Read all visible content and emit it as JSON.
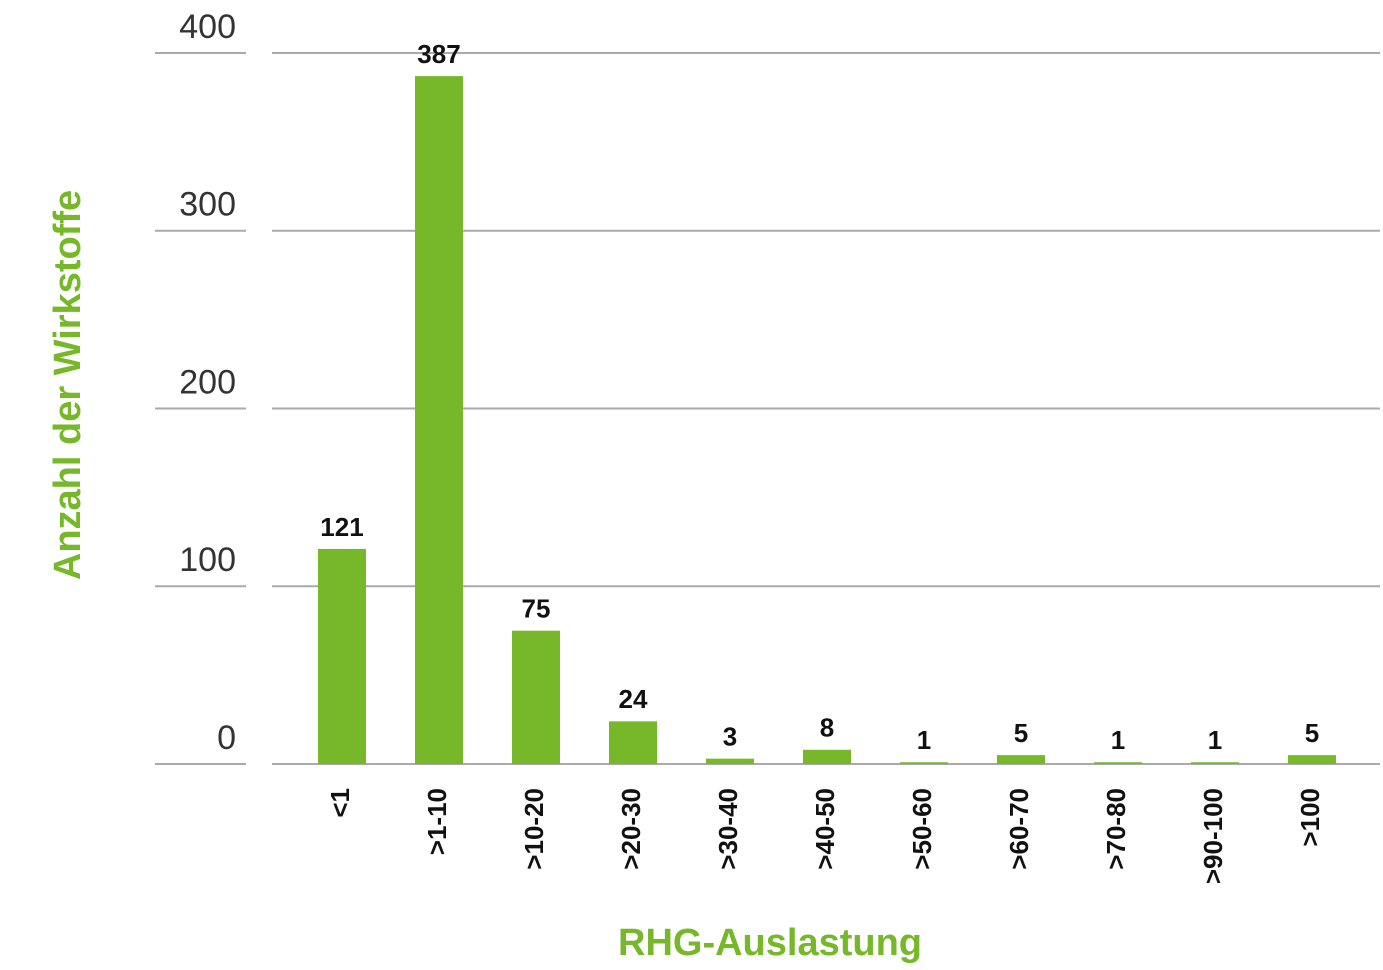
{
  "chart_data": {
    "type": "bar",
    "x_label": "RHG-Auslastung",
    "y_label": "Anzahl der Wirkstoffe",
    "categories": [
      "<1",
      ">1-10",
      ">10-20",
      ">20-30",
      ">30-40",
      ">40-50",
      ">50-60",
      ">60-70",
      ">70-80",
      ">90-100",
      ">100"
    ],
    "values": [
      121,
      387,
      75,
      24,
      3,
      8,
      1,
      5,
      1,
      1,
      5
    ],
    "color": "#76b82a",
    "ylim": [
      0,
      400
    ],
    "yticks": [
      0,
      100,
      200,
      300,
      400
    ],
    "grid": true
  }
}
